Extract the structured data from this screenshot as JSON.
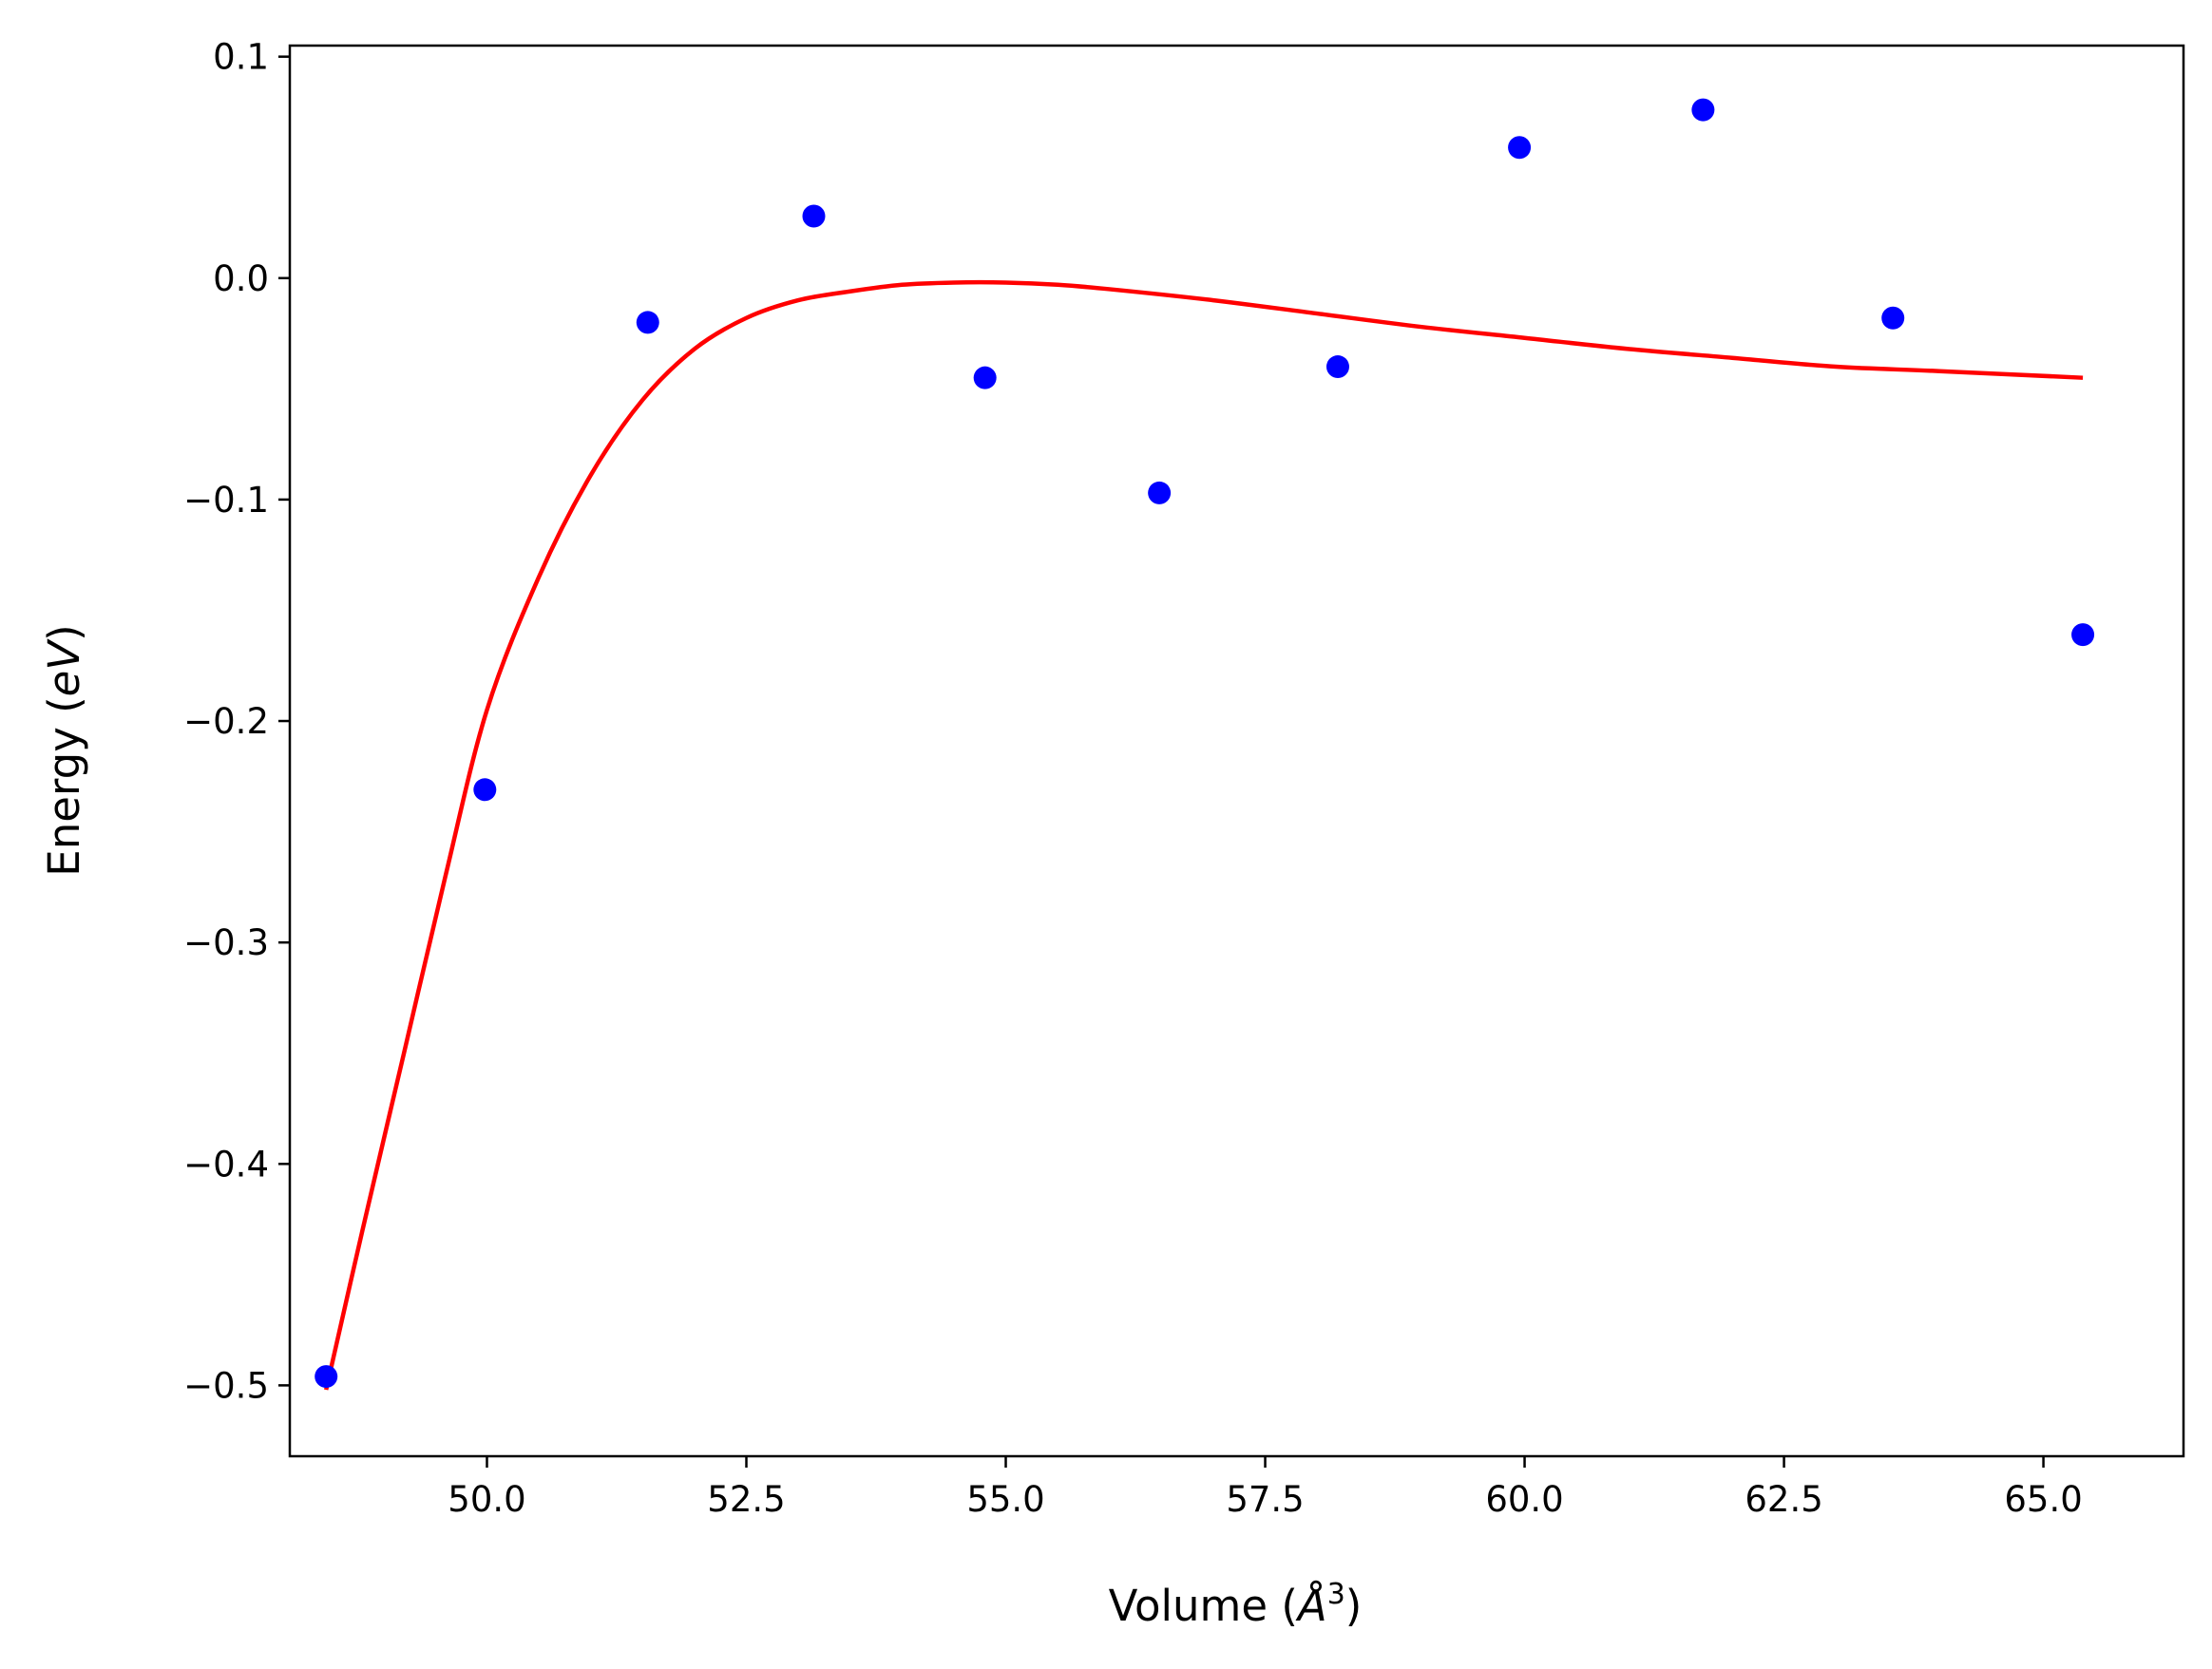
{
  "chart_data": {
    "type": "scatter",
    "xlabel": {
      "prefix": "Volume (",
      "unit": "Å",
      "exponent": "3",
      "suffix": ")"
    },
    "ylabel": {
      "prefix": "Energy (",
      "unit": "eV",
      "suffix": ")"
    },
    "xlim": [
      48.1,
      66.35
    ],
    "ylim": [
      -0.532,
      0.105
    ],
    "x_ticks": [
      {
        "value": 50.0,
        "label": "50.0"
      },
      {
        "value": 52.5,
        "label": "52.5"
      },
      {
        "value": 55.0,
        "label": "55.0"
      },
      {
        "value": 57.5,
        "label": "57.5"
      },
      {
        "value": 60.0,
        "label": "60.0"
      },
      {
        "value": 62.5,
        "label": "62.5"
      },
      {
        "value": 65.0,
        "label": "65.0"
      }
    ],
    "y_ticks": [
      {
        "value": 0.1,
        "label": "0.1"
      },
      {
        "value": 0.0,
        "label": "0.0"
      },
      {
        "value": -0.1,
        "label": "−0.1"
      },
      {
        "value": -0.2,
        "label": "−0.2"
      },
      {
        "value": -0.3,
        "label": "−0.3"
      },
      {
        "value": -0.4,
        "label": "−0.4"
      },
      {
        "value": -0.5,
        "label": "−0.5"
      }
    ],
    "grid": false,
    "series": [
      {
        "kind": "scatter",
        "color": "#0000ff",
        "points": [
          {
            "x": 48.45,
            "y": -0.496
          },
          {
            "x": 49.98,
            "y": -0.231
          },
          {
            "x": 51.55,
            "y": -0.02
          },
          {
            "x": 53.15,
            "y": 0.028
          },
          {
            "x": 54.8,
            "y": -0.045
          },
          {
            "x": 56.48,
            "y": -0.097
          },
          {
            "x": 58.2,
            "y": -0.04
          },
          {
            "x": 59.95,
            "y": 0.059
          },
          {
            "x": 61.72,
            "y": 0.076
          },
          {
            "x": 63.55,
            "y": -0.018
          },
          {
            "x": 65.38,
            "y": -0.161
          }
        ]
      },
      {
        "kind": "line",
        "color": "#ff0000",
        "x": [
          48.45,
          48.8,
          49.2,
          49.6,
          50.0,
          50.5,
          51.0,
          51.5,
          52.0,
          52.5,
          53.0,
          53.5,
          54.0,
          54.5,
          55.0,
          55.5,
          56.0,
          57.0,
          58.0,
          59.0,
          60.0,
          61.0,
          62.0,
          63.0,
          64.0,
          65.38
        ],
        "y": [
          -0.502,
          -0.43,
          -0.35,
          -0.27,
          -0.195,
          -0.135,
          -0.089,
          -0.055,
          -0.032,
          -0.018,
          -0.01,
          -0.006,
          -0.003,
          -0.002,
          -0.002,
          -0.003,
          -0.005,
          -0.01,
          -0.016,
          -0.022,
          -0.027,
          -0.032,
          -0.036,
          -0.04,
          -0.042,
          -0.045
        ]
      }
    ]
  }
}
